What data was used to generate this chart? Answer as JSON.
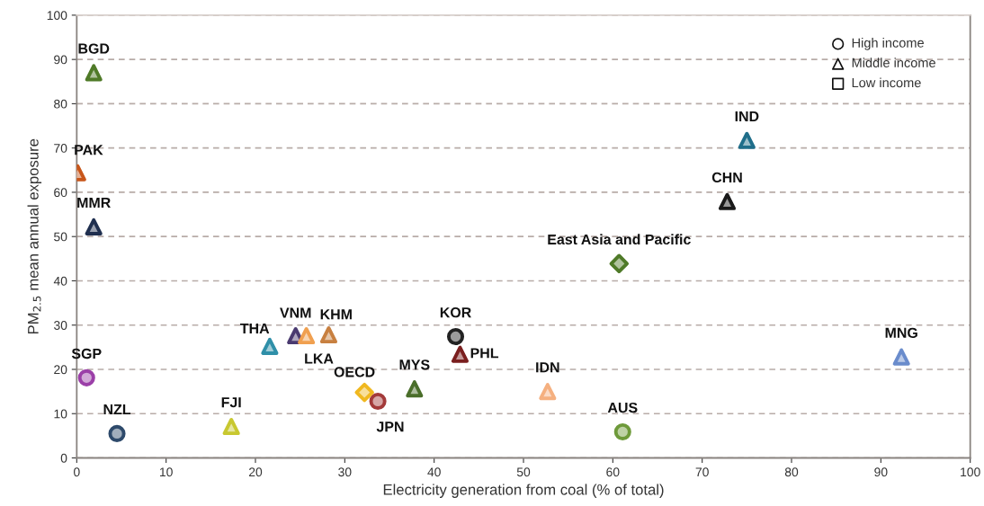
{
  "chart_data": {
    "type": "scatter",
    "xlabel": "Electricity generation from coal (% of total)",
    "ylabel": "PM$_{2.5}$ mean annual exposure",
    "xlim": [
      0,
      100
    ],
    "ylim": [
      0,
      100
    ],
    "xticks": [
      0,
      10,
      20,
      30,
      40,
      50,
      60,
      70,
      80,
      90,
      100
    ],
    "yticks": [
      0,
      10,
      20,
      30,
      40,
      50,
      60,
      70,
      80,
      90,
      100
    ],
    "grid": "y",
    "series": [
      {
        "marker": "circle",
        "x": [
          1.1,
          4.5,
          33.7,
          42.4,
          61.1
        ],
        "values": [
          18.1,
          5.5,
          12.8,
          27.4,
          5.9
        ],
        "colors": [
          "#9b3fa8",
          "#2e4a6b",
          "#a33a3a",
          "#222222",
          "#6e9a3a"
        ]
      },
      {
        "marker": "triangle",
        "x": [
          1.9,
          0.1,
          1.9,
          17.3,
          21.6,
          24.5,
          25.7,
          28.2,
          42.9,
          37.8,
          52.7,
          72.8,
          75.0,
          92.3
        ],
        "values": [
          87.0,
          64.4,
          52.2,
          7.1,
          25.2,
          27.6,
          27.6,
          27.8,
          23.4,
          15.6,
          15.0,
          57.9,
          71.7,
          22.8
        ],
        "colors": [
          "#4f7a28",
          "#c8561a",
          "#1f2f4f",
          "#c8c830",
          "#2f8fa8",
          "#4a3a70",
          "#f0a050",
          "#c88040",
          "#7a1f1f",
          "#4a6e2a",
          "#f5b080",
          "#1a1a1a",
          "#1f6e8a",
          "#6a8ccc"
        ]
      },
      {
        "marker": "square"
      },
      {
        "marker": "diamond",
        "x": [
          32.2,
          60.7
        ],
        "values": [
          14.8,
          43.9
        ],
        "colors": [
          "#f0b820",
          "#4f7a28"
        ]
      }
    ],
    "annotations": [
      "High income",
      "Middle income",
      "Low income",
      {
        "text": "BGD",
        "x": 1.9,
        "y": 87.0
      },
      {
        "text": "PAK",
        "x": 0.1,
        "y": 64.4
      },
      {
        "text": "MMR",
        "x": 1.9,
        "y": 52.2
      },
      {
        "text": "SGP",
        "x": 1.1,
        "y": 18.1
      },
      {
        "text": "NZL",
        "x": 4.5,
        "y": 5.5
      },
      {
        "text": "FJI",
        "x": 17.3,
        "y": 7.1
      },
      {
        "text": "THA",
        "x": 21.6,
        "y": 25.2
      },
      {
        "text": "VNM",
        "x": 24.5,
        "y": 27.6
      },
      {
        "text": "LKA",
        "x": 25.7,
        "y": 27.6
      },
      {
        "text": "KHM",
        "x": 28.2,
        "y": 27.8
      },
      {
        "text": "OECD",
        "x": 32.2,
        "y": 14.8
      },
      {
        "text": "JPN",
        "x": 33.7,
        "y": 12.8
      },
      {
        "text": "MYS",
        "x": 37.8,
        "y": 15.6
      },
      {
        "text": "KOR",
        "x": 42.4,
        "y": 27.4
      },
      {
        "text": "PHL",
        "x": 42.9,
        "y": 23.4
      },
      {
        "text": "IDN",
        "x": 52.7,
        "y": 15.0
      },
      {
        "text": "AUS",
        "x": 61.1,
        "y": 5.9
      },
      {
        "text": "East Asia and Pacific",
        "x": 60.7,
        "y": 43.9
      },
      {
        "text": "CHN",
        "x": 72.8,
        "y": 57.9
      },
      {
        "text": "IND",
        "x": 75.0,
        "y": 71.7
      },
      {
        "text": "MNG",
        "x": 92.3,
        "y": 22.8
      }
    ]
  }
}
